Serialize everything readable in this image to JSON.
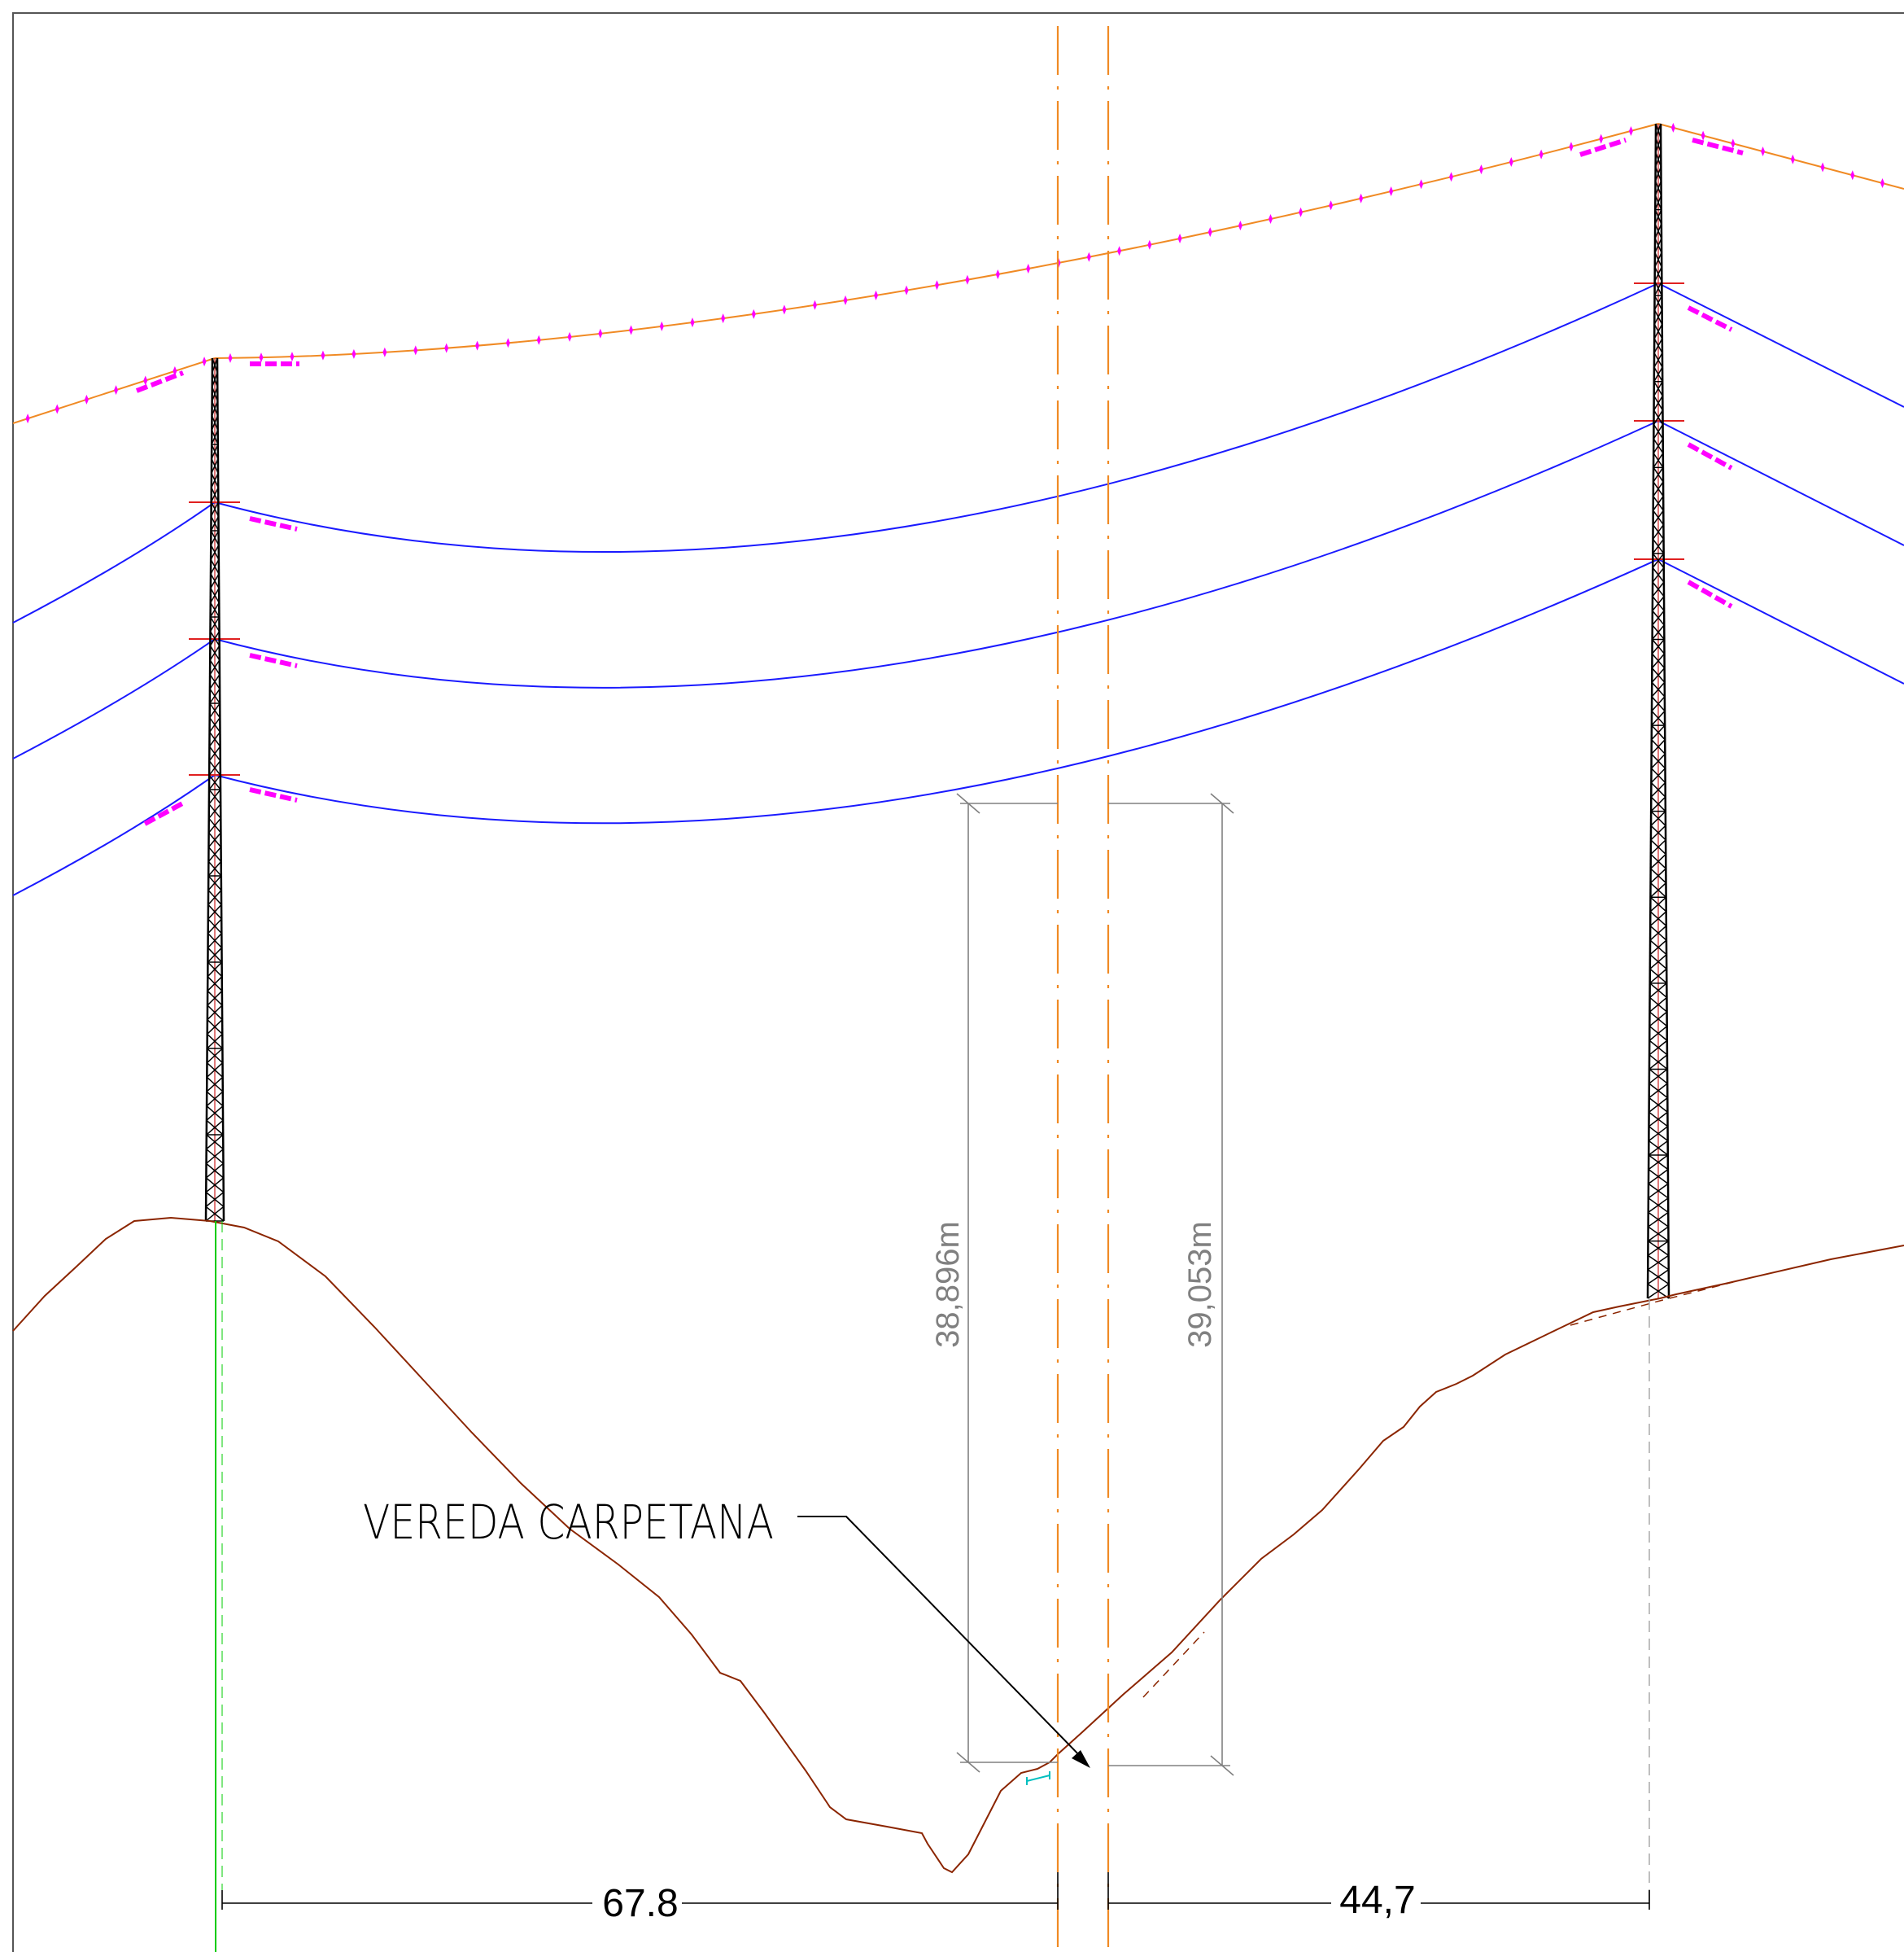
{
  "drawing": {
    "colors": {
      "background": "#ffffff",
      "border": "#555555",
      "ground_wire": "#f08a24",
      "ground_wire_marks": "#ff00ff",
      "insulator": "#ff00ff",
      "conductor": "#1a1aff",
      "tower": "#000000",
      "tower_core": "#cc2222",
      "crossarm": "#e02020",
      "terrain": "#8b2500",
      "centerline": "#f08a24",
      "dimension": "#808080",
      "dimension_text": "#808080",
      "bottom_dimension": "#000000",
      "annotation": "#000000",
      "tower_axis": "#00cc00",
      "tower_axis_right": "#aaaaaa",
      "road_mark": "#00bfbf"
    },
    "clearance_left": "38,896m",
    "clearance_right": "39,053m",
    "road_label": "VEREDA CARPETANA",
    "span_left": "67.8",
    "span_right": "44,7"
  }
}
